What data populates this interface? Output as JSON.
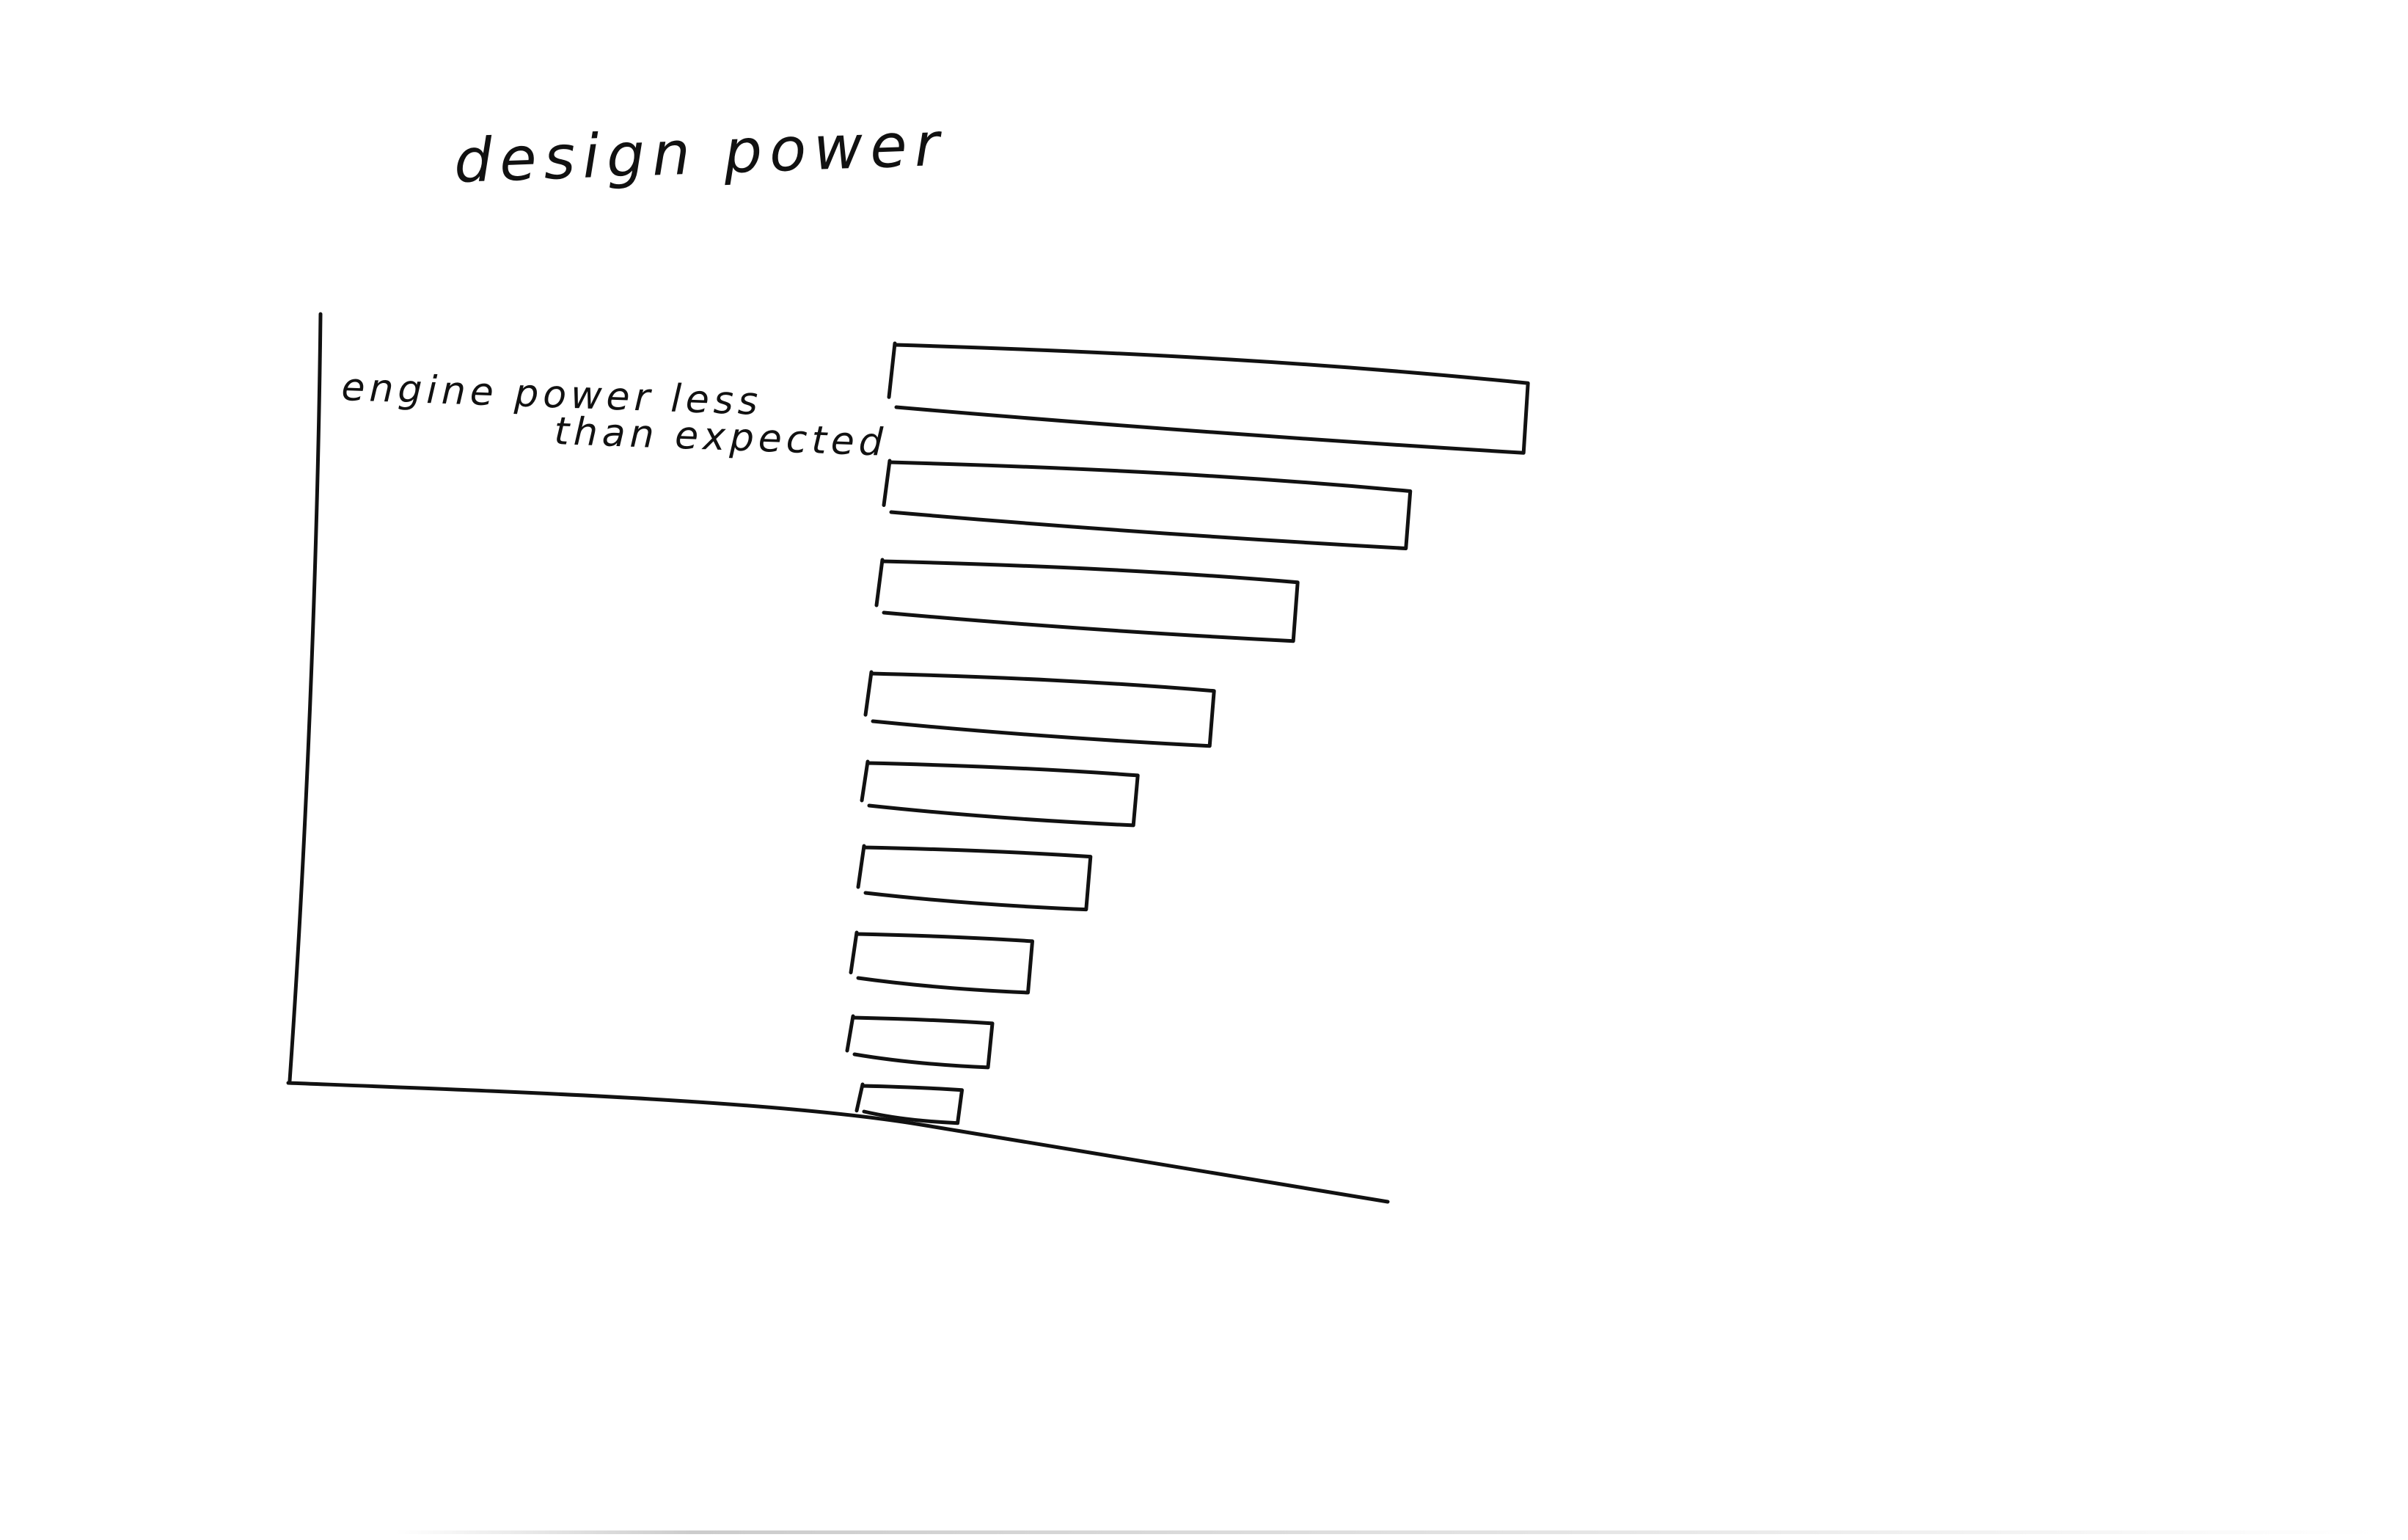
{
  "chart_data": {
    "type": "bar",
    "orientation": "horizontal",
    "title": "design power",
    "xlabel": "",
    "ylabel": "",
    "categories": [
      "engine power less than expected",
      "",
      "",
      "",
      "",
      "",
      "",
      "",
      ""
    ],
    "category_lines": [
      "engine power less",
      "than expected"
    ],
    "values": [
      880,
      725,
      580,
      480,
      380,
      320,
      250,
      200,
      145
    ],
    "xlim": [
      0,
      1000
    ],
    "grid": false,
    "legend": "none",
    "style": "hand-drawn",
    "ink_color": "#111111"
  }
}
